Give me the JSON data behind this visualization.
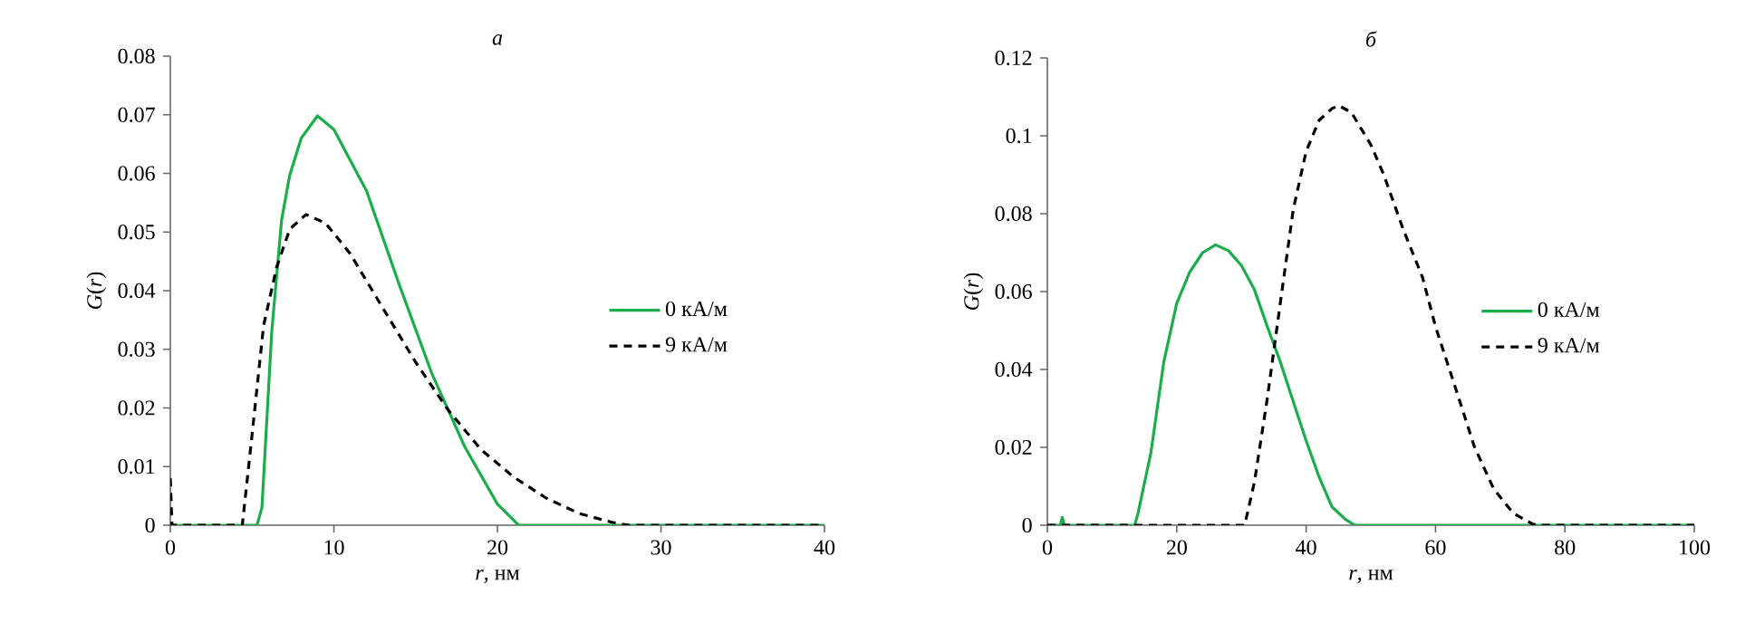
{
  "chart_data": [
    {
      "type": "line",
      "title": "а",
      "xlabel": "*r*, нм",
      "ylabel": "*G*(*r*)",
      "xlim": [
        0,
        40
      ],
      "xticks": [
        0,
        10,
        20,
        30,
        40
      ],
      "ylim": [
        0,
        0.08
      ],
      "yticks": [
        0,
        0.01,
        0.02,
        0.03,
        0.04,
        0.05,
        0.06,
        0.07,
        0.08
      ],
      "legend": "right",
      "series": [
        {
          "name": "0 кА/м",
          "color": "#1aae4a",
          "line_style": "solid",
          "x": [
            0,
            5.3,
            5.6,
            6.2,
            6.8,
            7.3,
            8,
            9,
            10,
            12,
            14,
            16,
            18,
            20,
            21.3,
            22,
            40
          ],
          "values": [
            0,
            0,
            0.003,
            0.033,
            0.052,
            0.0597,
            0.066,
            0.0698,
            0.0675,
            0.057,
            0.041,
            0.0258,
            0.0134,
            0.0036,
            0,
            0,
            0
          ]
        },
        {
          "name": "9 кА/м",
          "color": "#000000",
          "line_style": "dashed",
          "x": [
            0,
            0.1,
            4.4,
            5,
            5.7,
            6.5,
            7.3,
            8.3,
            9.5,
            11,
            13,
            15,
            17,
            19,
            21,
            23,
            25,
            27,
            28,
            40
          ],
          "values": [
            0.008,
            0,
            0,
            0.0155,
            0.034,
            0.044,
            0.0505,
            0.053,
            0.0515,
            0.0463,
            0.037,
            0.0278,
            0.0196,
            0.0129,
            0.0082,
            0.0046,
            0.002,
            0.0005,
            0,
            0
          ]
        }
      ]
    },
    {
      "type": "line",
      "title": "б",
      "xlabel": "*r*, нм",
      "ylabel": "*G*(*r*)",
      "xlim": [
        0,
        100
      ],
      "xticks": [
        0,
        20,
        40,
        60,
        80,
        100
      ],
      "ylim": [
        0,
        0.12
      ],
      "yticks": [
        0,
        0.02,
        0.04,
        0.06,
        0.08,
        0.1,
        0.12
      ],
      "legend": "right",
      "series": [
        {
          "name": "0 кА/м",
          "color": "#1aae4a",
          "line_style": "solid",
          "x": [
            0,
            2,
            2.3,
            2.6,
            13.5,
            14,
            16,
            18,
            20,
            22,
            24,
            26,
            28,
            30,
            32,
            34,
            36,
            38,
            40,
            42,
            44,
            46,
            47.5,
            100
          ],
          "values": [
            0,
            0,
            0.002,
            0,
            0,
            0.003,
            0.0186,
            0.042,
            0.057,
            0.065,
            0.07,
            0.072,
            0.0705,
            0.0667,
            0.0605,
            0.051,
            0.042,
            0.0318,
            0.0217,
            0.0124,
            0.0047,
            0.0016,
            0,
            0
          ]
        },
        {
          "name": "9 кА/м",
          "color": "#000000",
          "line_style": "dashed",
          "x": [
            0,
            30.5,
            32,
            34,
            36,
            38,
            40,
            42,
            44,
            45,
            47,
            50,
            52,
            55,
            58,
            60,
            63,
            66,
            69,
            72,
            75,
            76,
            100
          ],
          "values": [
            0,
            0,
            0.011,
            0.0326,
            0.057,
            0.081,
            0.096,
            0.104,
            0.107,
            0.1078,
            0.106,
            0.0977,
            0.09,
            0.076,
            0.0636,
            0.051,
            0.0357,
            0.0202,
            0.0093,
            0.0031,
            0.0003,
            0,
            0
          ]
        }
      ]
    }
  ]
}
